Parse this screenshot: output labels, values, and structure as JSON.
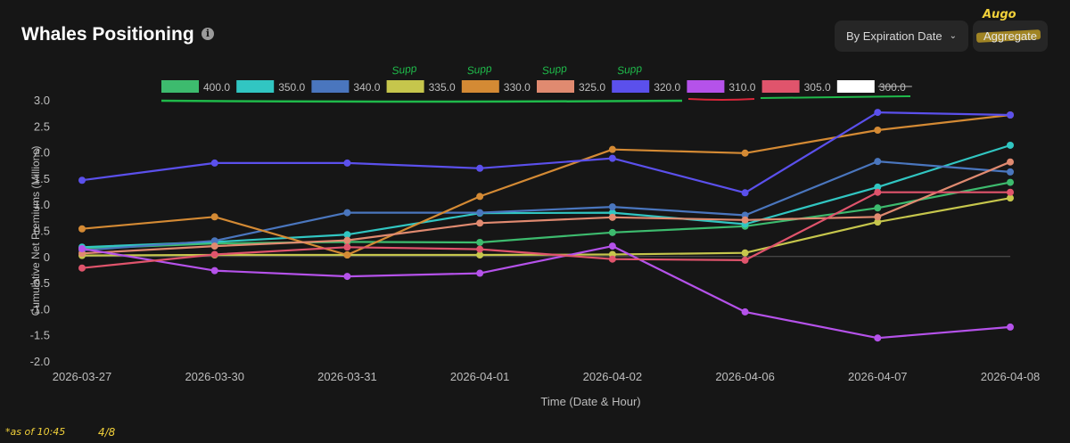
{
  "header": {
    "title": "Whales Positioning",
    "info_icon": "info-icon",
    "dropdown_label": "By Expiration Date",
    "dropdown_icon": "chevron-down-icon",
    "aggregate_label": "Aggregate"
  },
  "annotations": {
    "augo": "Augo",
    "footnote": "*as of 10:45",
    "footnote_date": "4/8",
    "legend_notes": [
      {
        "text": "Supp",
        "anchor": "335.0"
      },
      {
        "text": "Supp",
        "anchor": "330.0"
      },
      {
        "text": "Supp",
        "anchor": "325.0"
      },
      {
        "text": "Supp",
        "anchor": "320.0"
      }
    ],
    "underline_colors": {
      "green": "#1fb94a",
      "red": "#d9263a"
    }
  },
  "chart_data": {
    "type": "line",
    "title": "Whales Positioning",
    "xlabel": "Time (Date & Hour)",
    "ylabel": "Cumulative Net Premiums (Millions)",
    "ylim": [
      -2.0,
      3.0
    ],
    "yticks": [
      "3.0",
      "2.5",
      "2.0",
      "1.5",
      "1.0",
      "0.5",
      "0",
      "-0.5",
      "-1.0",
      "-1.5",
      "-2.0"
    ],
    "categories": [
      "2026-03-27",
      "2026-03-30",
      "2026-03-31",
      "2026-04-01",
      "2026-04-02",
      "2026-04-06",
      "2026-04-07",
      "2026-04-08"
    ],
    "series": [
      {
        "name": "400.0",
        "color": "#3dbb6e",
        "values": [
          0.15,
          0.25,
          0.28,
          0.27,
          0.46,
          0.58,
          0.93,
          1.42
        ]
      },
      {
        "name": "350.0",
        "color": "#31c6c2",
        "values": [
          0.18,
          0.28,
          0.42,
          0.83,
          0.84,
          0.62,
          1.33,
          2.13
        ]
      },
      {
        "name": "340.0",
        "color": "#4a76be",
        "values": [
          0.12,
          0.3,
          0.84,
          0.84,
          0.95,
          0.79,
          1.82,
          1.62
        ]
      },
      {
        "name": "335.0",
        "color": "#c6c64c",
        "values": [
          0.02,
          0.03,
          0.03,
          0.03,
          0.04,
          0.07,
          0.66,
          1.12
        ]
      },
      {
        "name": "330.0",
        "color": "#d48a34",
        "values": [
          0.53,
          0.76,
          0.03,
          1.15,
          2.05,
          1.98,
          2.42,
          2.71
        ]
      },
      {
        "name": "325.0",
        "color": "#e08a70",
        "values": [
          0.06,
          0.2,
          0.31,
          0.64,
          0.75,
          0.7,
          0.76,
          1.81
        ]
      },
      {
        "name": "320.0",
        "color": "#5b50ec",
        "values": [
          1.46,
          1.79,
          1.79,
          1.69,
          1.88,
          1.22,
          2.76,
          2.71
        ]
      },
      {
        "name": "310.0",
        "color": "#b552ea",
        "values": [
          0.15,
          -0.27,
          -0.38,
          -0.32,
          0.2,
          -1.06,
          -1.56,
          -1.35
        ]
      },
      {
        "name": "305.0",
        "color": "#e0546c",
        "values": [
          -0.22,
          0.04,
          0.18,
          0.14,
          -0.05,
          -0.07,
          1.23,
          1.23
        ]
      },
      {
        "name": "300.0",
        "color": "#ffffff",
        "values": null,
        "hidden": true
      }
    ]
  }
}
